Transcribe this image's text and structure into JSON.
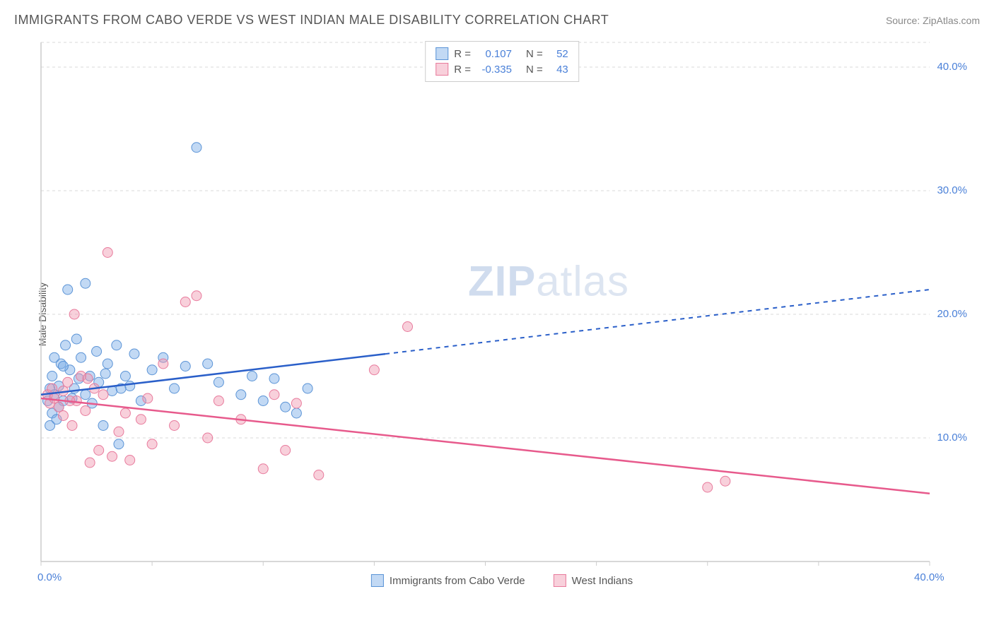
{
  "header": {
    "title": "IMMIGRANTS FROM CABO VERDE VS WEST INDIAN MALE DISABILITY CORRELATION CHART",
    "source": "Source: ZipAtlas.com"
  },
  "ylabel": "Male Disability",
  "watermark": {
    "bold": "ZIP",
    "rest": "atlas"
  },
  "axes": {
    "xmin": 0,
    "xmax": 40,
    "ymin": 0,
    "ymax": 42,
    "xticks": [
      {
        "v": 0,
        "label": "0.0%"
      },
      {
        "v": 40,
        "label": "40.0%"
      }
    ],
    "yticks": [
      {
        "v": 10,
        "label": "10.0%"
      },
      {
        "v": 20,
        "label": "20.0%"
      },
      {
        "v": 30,
        "label": "30.0%"
      },
      {
        "v": 40,
        "label": "40.0%"
      }
    ],
    "grid_color": "#d8d8d8",
    "axis_color": "#cccccc"
  },
  "series": [
    {
      "name": "Immigrants from Cabo Verde",
      "fill": "rgba(120,170,230,0.45)",
      "stroke": "#5a93d6",
      "line_color": "#2a5fc9",
      "R": "0.107",
      "N": "52",
      "trend": {
        "y0": 13.5,
        "y40": 22.0,
        "solid_until_x": 15.5
      },
      "points": [
        [
          0.3,
          13.0
        ],
        [
          0.4,
          14.0
        ],
        [
          0.5,
          12.0
        ],
        [
          0.5,
          15.0
        ],
        [
          0.6,
          13.5
        ],
        [
          0.7,
          11.5
        ],
        [
          0.8,
          14.2
        ],
        [
          0.9,
          16.0
        ],
        [
          1.0,
          13.0
        ],
        [
          1.1,
          17.5
        ],
        [
          1.2,
          22.0
        ],
        [
          1.3,
          15.5
        ],
        [
          1.5,
          14.0
        ],
        [
          1.6,
          18.0
        ],
        [
          1.8,
          16.5
        ],
        [
          2.0,
          13.5
        ],
        [
          2.0,
          22.5
        ],
        [
          2.2,
          15.0
        ],
        [
          2.5,
          17.0
        ],
        [
          2.6,
          14.5
        ],
        [
          2.8,
          11.0
        ],
        [
          3.0,
          16.0
        ],
        [
          3.2,
          13.8
        ],
        [
          3.4,
          17.5
        ],
        [
          3.5,
          9.5
        ],
        [
          3.8,
          15.0
        ],
        [
          4.0,
          14.2
        ],
        [
          4.2,
          16.8
        ],
        [
          4.5,
          13.0
        ],
        [
          5.0,
          15.5
        ],
        [
          5.5,
          16.5
        ],
        [
          6.0,
          14.0
        ],
        [
          6.5,
          15.8
        ],
        [
          7.0,
          33.5
        ],
        [
          7.5,
          16.0
        ],
        [
          8.0,
          14.5
        ],
        [
          9.0,
          13.5
        ],
        [
          9.5,
          15.0
        ],
        [
          10.0,
          13.0
        ],
        [
          10.5,
          14.8
        ],
        [
          11.0,
          12.5
        ],
        [
          11.5,
          12.0
        ],
        [
          12.0,
          14.0
        ],
        [
          0.4,
          11.0
        ],
        [
          0.6,
          16.5
        ],
        [
          0.8,
          12.5
        ],
        [
          1.0,
          15.8
        ],
        [
          1.4,
          13.2
        ],
        [
          1.7,
          14.8
        ],
        [
          2.3,
          12.8
        ],
        [
          2.9,
          15.2
        ],
        [
          3.6,
          14.0
        ]
      ]
    },
    {
      "name": "West Indians",
      "fill": "rgba(240,150,175,0.45)",
      "stroke": "#e87a9c",
      "line_color": "#e75a8c",
      "R": "-0.335",
      "N": "43",
      "trend": {
        "y0": 13.2,
        "y40": 5.5,
        "solid_until_x": 40
      },
      "points": [
        [
          0.3,
          13.5
        ],
        [
          0.4,
          12.8
        ],
        [
          0.5,
          14.0
        ],
        [
          0.6,
          13.2
        ],
        [
          0.8,
          12.5
        ],
        [
          1.0,
          13.8
        ],
        [
          1.2,
          14.5
        ],
        [
          1.4,
          11.0
        ],
        [
          1.5,
          20.0
        ],
        [
          1.6,
          13.0
        ],
        [
          1.8,
          15.0
        ],
        [
          2.0,
          12.2
        ],
        [
          2.2,
          8.0
        ],
        [
          2.4,
          14.0
        ],
        [
          2.6,
          9.0
        ],
        [
          2.8,
          13.5
        ],
        [
          3.0,
          25.0
        ],
        [
          3.2,
          8.5
        ],
        [
          3.5,
          10.5
        ],
        [
          3.8,
          12.0
        ],
        [
          4.0,
          8.2
        ],
        [
          4.5,
          11.5
        ],
        [
          5.0,
          9.5
        ],
        [
          5.5,
          16.0
        ],
        [
          6.0,
          11.0
        ],
        [
          6.5,
          21.0
        ],
        [
          7.0,
          21.5
        ],
        [
          7.5,
          10.0
        ],
        [
          8.0,
          13.0
        ],
        [
          9.0,
          11.5
        ],
        [
          10.0,
          7.5
        ],
        [
          10.5,
          13.5
        ],
        [
          11.0,
          9.0
        ],
        [
          11.5,
          12.8
        ],
        [
          12.5,
          7.0
        ],
        [
          15.0,
          15.5
        ],
        [
          16.5,
          19.0
        ],
        [
          30.0,
          6.0
        ],
        [
          30.8,
          6.5
        ],
        [
          1.0,
          11.8
        ],
        [
          1.3,
          13.0
        ],
        [
          2.1,
          14.8
        ],
        [
          4.8,
          13.2
        ]
      ]
    }
  ],
  "marker_radius": 7,
  "background": "#ffffff"
}
